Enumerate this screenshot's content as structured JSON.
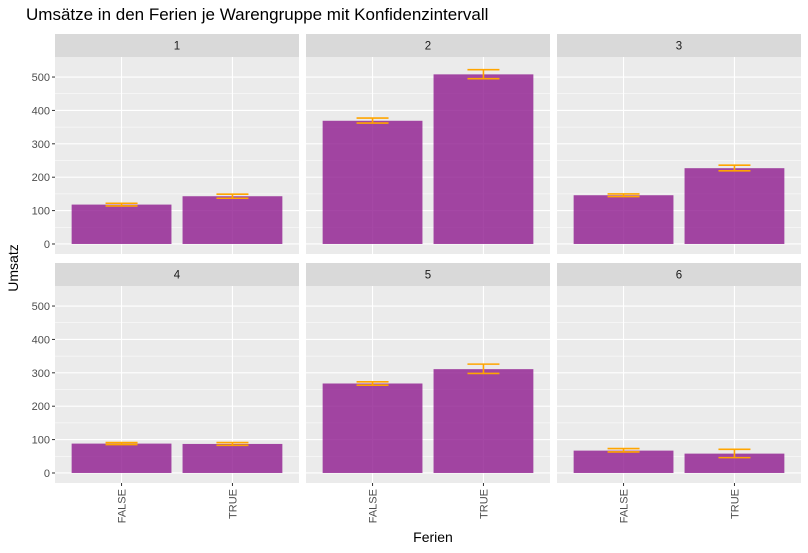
{
  "chart_data": {
    "type": "bar",
    "title": "Umsätze in den Ferien je Warengruppe mit Konfidenzintervall",
    "xlabel": "Ferien",
    "ylabel": "Umsatz",
    "categories": [
      "FALSE",
      "TRUE"
    ],
    "ylim": [
      -30,
      560
    ],
    "yticks": [
      0,
      100,
      200,
      300,
      400,
      500
    ],
    "grid": true,
    "bar_color": "#8E1A8E",
    "bar_opacity": 0.8,
    "errorbar_color": "#FFA500",
    "panel_bg": "#EBEBEB",
    "strip_bg": "#D9D9D9",
    "panels": [
      {
        "label": "1",
        "values": [
          118,
          143
        ],
        "ci_low": [
          114,
          137
        ],
        "ci_high": [
          122,
          149
        ]
      },
      {
        "label": "2",
        "values": [
          369,
          508
        ],
        "ci_low": [
          362,
          495
        ],
        "ci_high": [
          377,
          522
        ]
      },
      {
        "label": "3",
        "values": [
          146,
          227
        ],
        "ci_low": [
          142,
          219
        ],
        "ci_high": [
          150,
          236
        ]
      },
      {
        "label": "4",
        "values": [
          88,
          87
        ],
        "ci_low": [
          85,
          83
        ],
        "ci_high": [
          91,
          91
        ]
      },
      {
        "label": "5",
        "values": [
          268,
          311
        ],
        "ci_low": [
          263,
          298
        ],
        "ci_high": [
          273,
          326
        ]
      },
      {
        "label": "6",
        "values": [
          67,
          58
        ],
        "ci_low": [
          63,
          46
        ],
        "ci_high": [
          73,
          71
        ]
      }
    ]
  }
}
